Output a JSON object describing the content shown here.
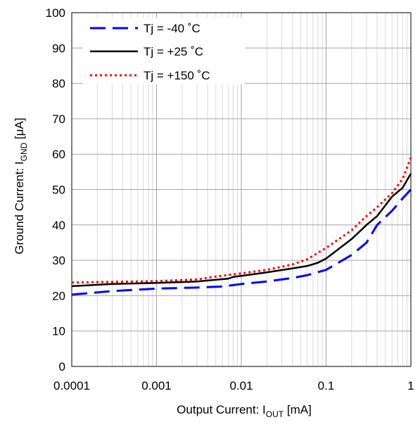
{
  "chart_data": {
    "type": "line",
    "x_scale": "log",
    "xlim": [
      0.0001,
      1
    ],
    "ylim": [
      0,
      100
    ],
    "x_ticks": [
      0.0001,
      0.001,
      0.01,
      0.1,
      1
    ],
    "x_tick_labels": [
      "0.0001",
      "0.001",
      "0.01",
      "0.1",
      "1"
    ],
    "y_ticks": [
      0,
      10,
      20,
      30,
      40,
      50,
      60,
      70,
      80,
      90,
      100
    ],
    "y_tick_labels": [
      "0",
      "10",
      "20",
      "30",
      "40",
      "50",
      "60",
      "70",
      "80",
      "90",
      "100"
    ],
    "xlabel": {
      "main": "Output Current: I",
      "sub": "OUT",
      "unit": " [mA]"
    },
    "ylabel": {
      "main": "Ground Current: I",
      "sub": "GND",
      "unit": " [μA]"
    },
    "grid": {
      "major": true,
      "minor_x": true
    },
    "legend": {
      "placement": "top-left"
    },
    "series": [
      {
        "name": "Tj = -40 ˚C",
        "color": "#0000ff",
        "style": "dashed",
        "points": [
          [
            0.0001,
            20.3
          ],
          [
            0.0003,
            21.3
          ],
          [
            0.001,
            22.0
          ],
          [
            0.003,
            22.3
          ],
          [
            0.006,
            22.6
          ],
          [
            0.01,
            23.3
          ],
          [
            0.02,
            24.0
          ],
          [
            0.04,
            25.0
          ],
          [
            0.06,
            25.8
          ],
          [
            0.1,
            27.3
          ],
          [
            0.2,
            31.5
          ],
          [
            0.3,
            35.0
          ],
          [
            0.4,
            40.0
          ],
          [
            0.6,
            44.0
          ],
          [
            0.8,
            47.5
          ],
          [
            1.0,
            50.0
          ]
        ]
      },
      {
        "name": "Tj = +25 ˚C",
        "color": "#000000",
        "style": "solid",
        "points": [
          [
            0.0001,
            22.7
          ],
          [
            0.0003,
            23.3
          ],
          [
            0.001,
            23.6
          ],
          [
            0.003,
            24.0
          ],
          [
            0.005,
            24.5
          ],
          [
            0.007,
            24.8
          ],
          [
            0.008,
            25.3
          ],
          [
            0.01,
            25.6
          ],
          [
            0.02,
            26.6
          ],
          [
            0.04,
            27.7
          ],
          [
            0.06,
            28.4
          ],
          [
            0.08,
            29.3
          ],
          [
            0.1,
            30.5
          ],
          [
            0.2,
            36.0
          ],
          [
            0.3,
            40.0
          ],
          [
            0.4,
            42.5
          ],
          [
            0.6,
            48.0
          ],
          [
            0.8,
            50.5
          ],
          [
            1.0,
            54.5
          ]
        ]
      },
      {
        "name": "Tj = +150 ˚C",
        "color": "#ff0000",
        "style": "dotted",
        "points": [
          [
            0.0001,
            23.7
          ],
          [
            0.0003,
            23.9
          ],
          [
            0.001,
            24.1
          ],
          [
            0.003,
            24.6
          ],
          [
            0.005,
            25.4
          ],
          [
            0.01,
            26.3
          ],
          [
            0.02,
            27.3
          ],
          [
            0.04,
            28.8
          ],
          [
            0.06,
            30.3
          ],
          [
            0.1,
            33.5
          ],
          [
            0.2,
            38.5
          ],
          [
            0.3,
            42.5
          ],
          [
            0.4,
            45.0
          ],
          [
            0.6,
            49.0
          ],
          [
            0.8,
            53.0
          ],
          [
            1.0,
            59.0
          ]
        ]
      }
    ]
  }
}
